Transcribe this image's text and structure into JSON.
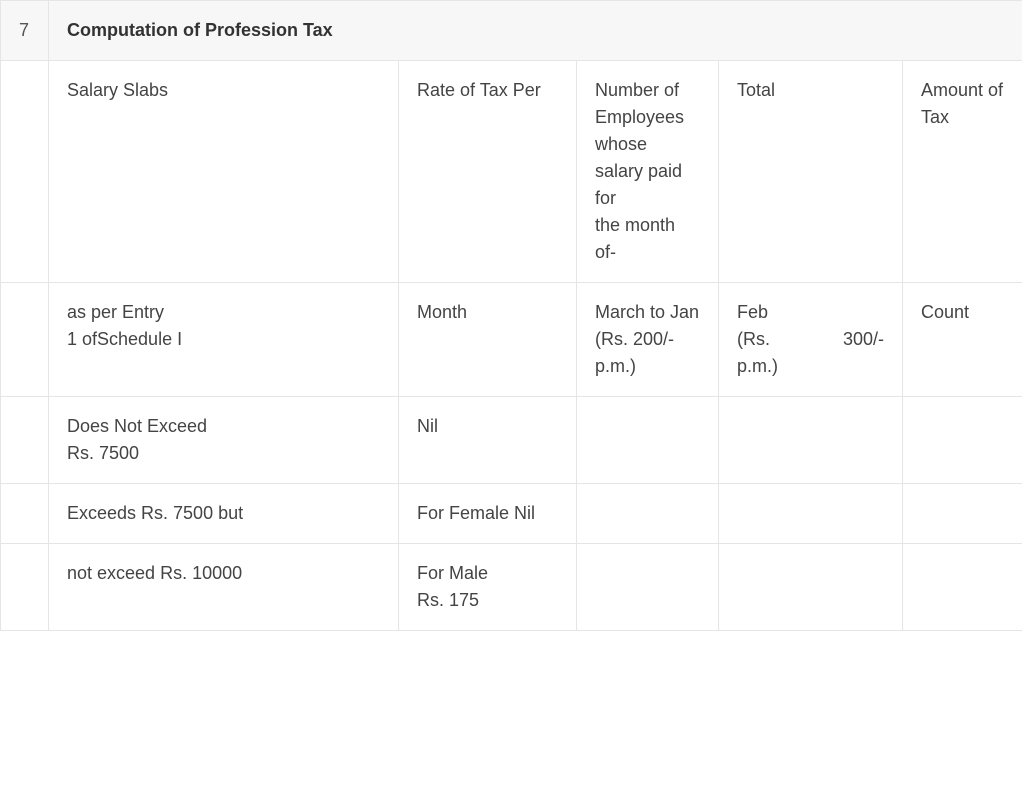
{
  "section": {
    "number": "7",
    "title": "Computation of Profession Tax"
  },
  "columns": {
    "slab": "Salary Slabs",
    "rate": "Rate of Tax Per",
    "employees": "Number of Employees whose salary paid for\nthe month of-",
    "total": "Total",
    "amount": "Amount of\nTax"
  },
  "subheader": {
    "slab": "as per Entry\n1 ofSchedule I",
    "rate": "Month",
    "employees": "March to Jan\n(Rs. 200/- p.m.)",
    "total_label1": "Feb",
    "total_label2_left": "(Rs.",
    "total_label2_right": "300/-",
    "total_label3": "p.m.)",
    "amount": "Count"
  },
  "rows": [
    {
      "slab": "Does Not Exceed\nRs. 7500",
      "rate": "Nil",
      "employees": "",
      "total": "",
      "amount": ""
    },
    {
      "slab": "Exceeds Rs. 7500 but",
      "rate": "For Female Nil",
      "employees": "",
      "total": "",
      "amount": ""
    },
    {
      "slab": "not exceed Rs. 10000",
      "rate": "For Male\nRs. 175",
      "employees": "",
      "total": "",
      "amount": ""
    }
  ],
  "styles": {
    "border_color": "#e5e5e5",
    "header_bg": "#f7f7f7",
    "text_color": "#444444",
    "font_size": 18
  }
}
